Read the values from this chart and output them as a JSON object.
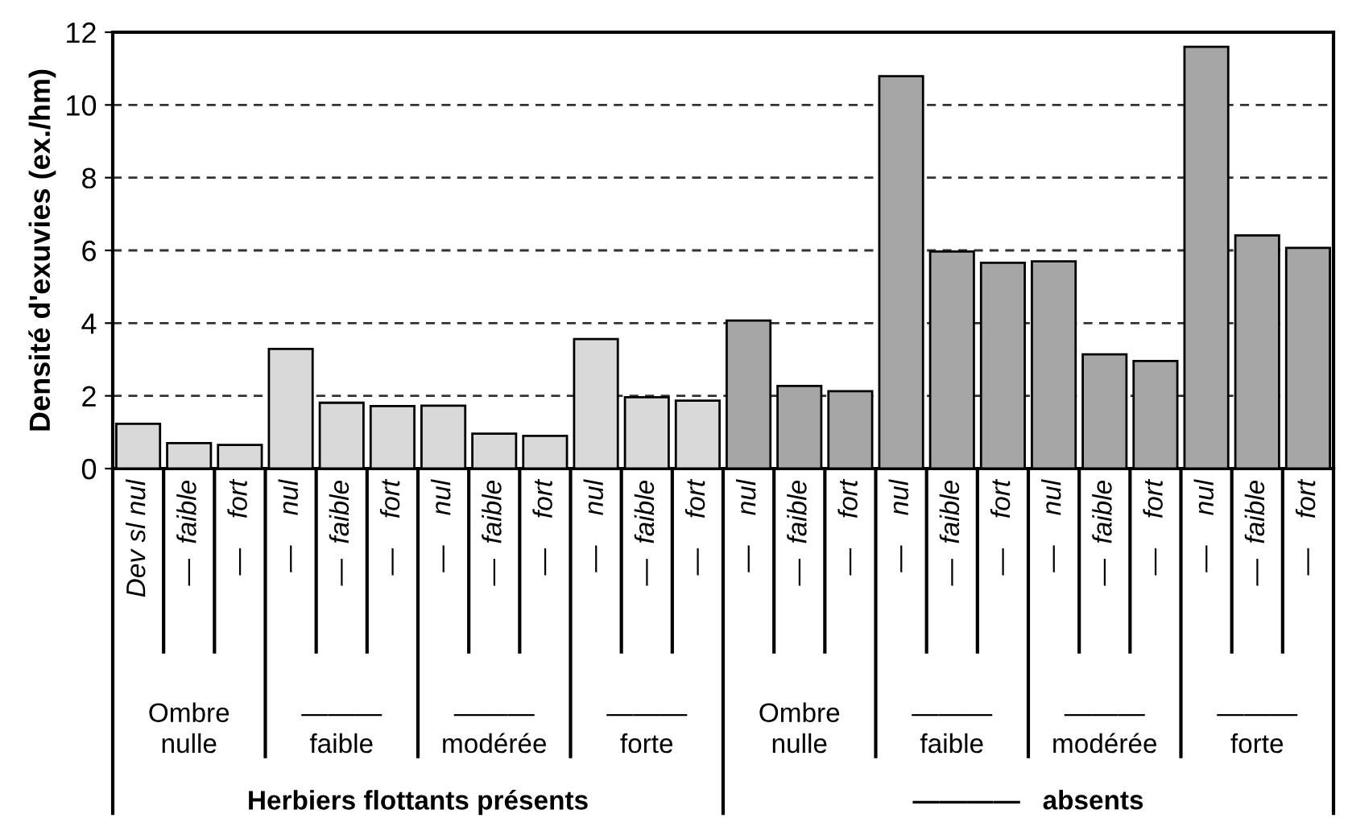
{
  "chart_data": {
    "type": "bar",
    "ylabel": "Densité d'exuvies (ex./hm)",
    "categories": [
      "Dev sl nul",
      "—  faible",
      "—    fort",
      "—    nul",
      "—  faible",
      "—    fort",
      "—    nul",
      "—  faible",
      "—    fort",
      "—    nul",
      "—  faible",
      "—    fort",
      "—    nul",
      "—  faible",
      "—    fort",
      "—    nul",
      "—  faible",
      "—    fort",
      "—    nul",
      "—  faible",
      "—    fort",
      "—    nul",
      "—  faible",
      "—    fort"
    ],
    "values": [
      1.23,
      0.7,
      0.65,
      3.29,
      1.81,
      1.72,
      1.73,
      0.96,
      0.9,
      3.56,
      1.96,
      1.87,
      4.07,
      2.27,
      2.13,
      10.79,
      5.97,
      5.66,
      5.7,
      3.14,
      2.96,
      11.6,
      6.41,
      6.07
    ],
    "colors": [
      "#d9d9d9",
      "#d9d9d9",
      "#d9d9d9",
      "#d9d9d9",
      "#d9d9d9",
      "#d9d9d9",
      "#d9d9d9",
      "#d9d9d9",
      "#d9d9d9",
      "#d9d9d9",
      "#d9d9d9",
      "#d9d9d9",
      "#a6a6a6",
      "#a6a6a6",
      "#a6a6a6",
      "#a6a6a6",
      "#a6a6a6",
      "#a6a6a6",
      "#a6a6a6",
      "#a6a6a6",
      "#a6a6a6",
      "#a6a6a6",
      "#a6a6a6",
      "#a6a6a6"
    ],
    "ylim": [
      0,
      12
    ],
    "yticks": [
      0,
      2,
      4,
      6,
      8,
      10,
      12
    ],
    "grid": "y",
    "annotations": [
      "Ombre\nnulle",
      "———\nfaible",
      "———\nmodérée",
      "———\nforte",
      "Ombre\nnulle",
      "———\nfaible",
      "———\nmodérée",
      "———\nforte",
      "Herbiers flottants présents",
      "————   absents"
    ]
  }
}
